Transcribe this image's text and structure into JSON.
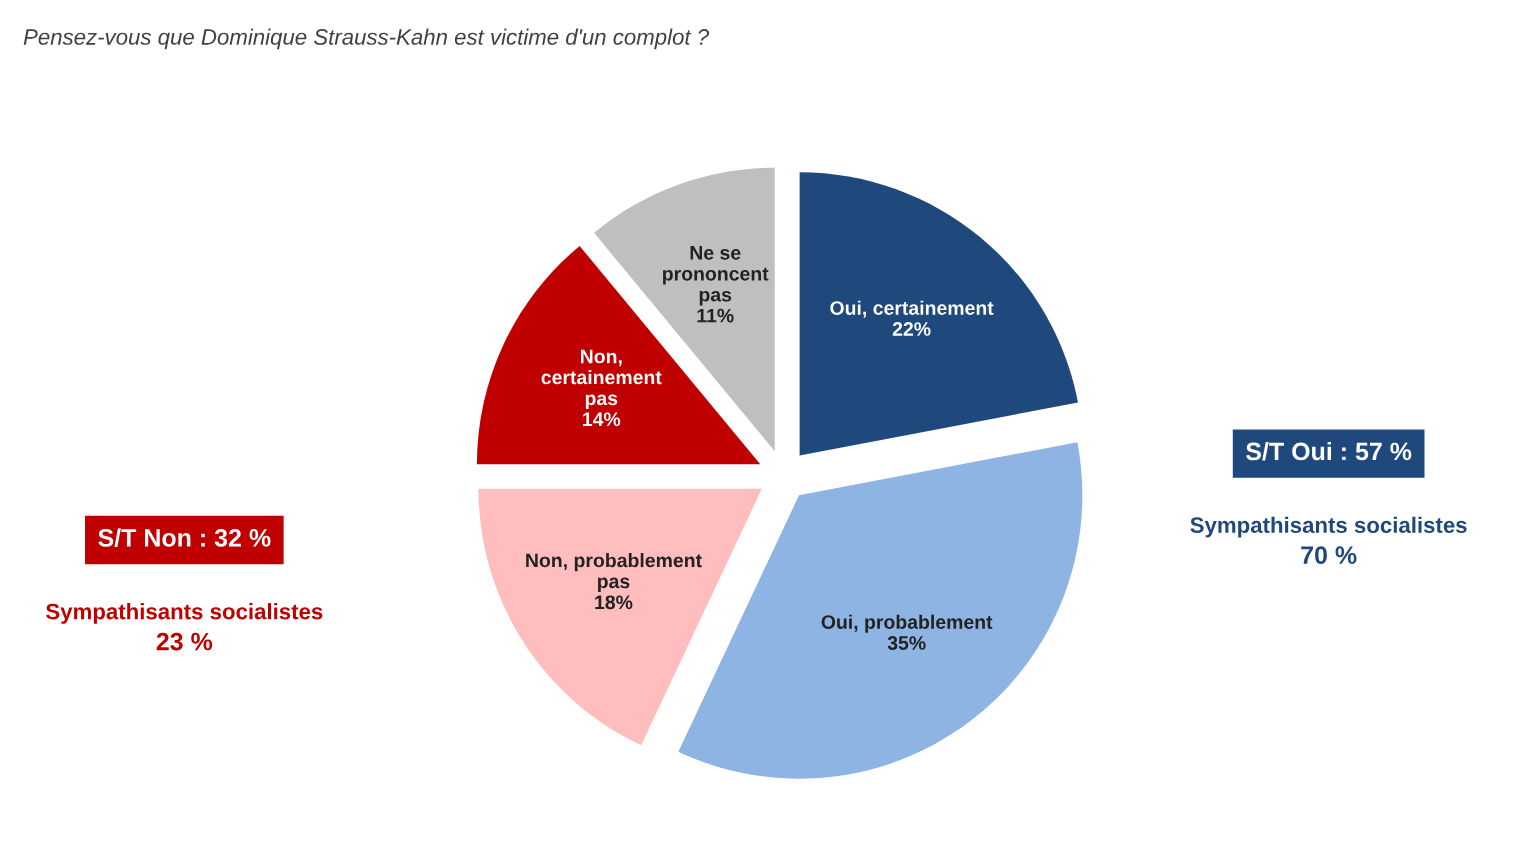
{
  "chart_data": {
    "type": "pie",
    "title": "Pensez-vous que Dominique Strauss-Kahn est victime d'un complot ?",
    "categories": [
      "Oui, certainement",
      "Oui, probablement",
      "Non, probablement\npas",
      "Non,\ncertainement\npas",
      "Ne se\nprononcent\npas"
    ],
    "values": [
      22,
      35,
      18,
      14,
      11
    ],
    "value_labels": [
      "22%",
      "35%",
      "18%",
      "14%",
      "11%"
    ],
    "colors": [
      "#1f497d",
      "#8db4e2",
      "#ffbdbd",
      "#c00000",
      "#bfbfbf"
    ],
    "annotations": [
      "S/T Oui : 57 %",
      "Sympathisants socialistes",
      "70 %",
      "S/T Non : 32 %",
      "Sympathisants socialistes",
      "23 %"
    ]
  }
}
